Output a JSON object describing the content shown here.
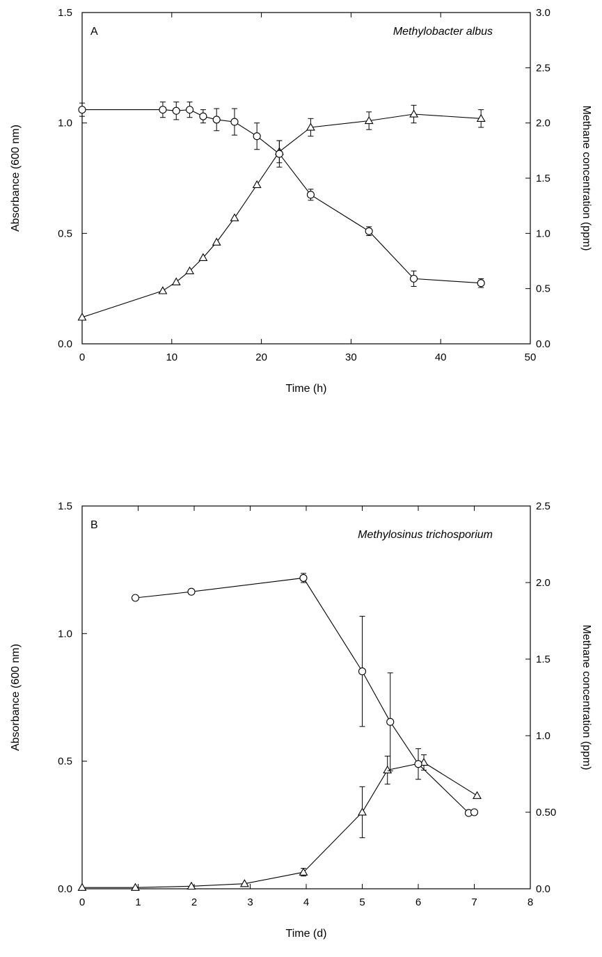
{
  "chart_data": [
    {
      "type": "line",
      "panel_label": "A",
      "annotation": "Methylobacter albus",
      "xlabel": "Time (h)",
      "ylabel_left": "Absorbance (600 nm)",
      "ylabel_right": "Methane concentration (ppm)",
      "xlim": [
        0,
        50
      ],
      "ylim_left": [
        0,
        1.5
      ],
      "ylim_right": [
        0,
        3.0
      ],
      "x_ticks": [
        "0",
        "10",
        "20",
        "30",
        "40",
        "50"
      ],
      "y_left_ticks": [
        "0.0",
        "0.5",
        "1.0",
        "1.5"
      ],
      "y_right_ticks": [
        "0.0",
        "0.5",
        "1.0",
        "1.5",
        "2.0",
        "2.5",
        "3.0"
      ],
      "grid": false,
      "series": [
        {
          "marker": "triangle",
          "axis": "left",
          "points": [
            {
              "x": 0,
              "y": 0.12
            },
            {
              "x": 9,
              "y": 0.24
            },
            {
              "x": 10.5,
              "y": 0.28
            },
            {
              "x": 12,
              "y": 0.33
            },
            {
              "x": 13.5,
              "y": 0.39
            },
            {
              "x": 15,
              "y": 0.46
            },
            {
              "x": 17,
              "y": 0.57
            },
            {
              "x": 19.5,
              "y": 0.72
            },
            {
              "x": 22,
              "y": 0.87,
              "err": 0.05
            },
            {
              "x": 25.5,
              "y": 0.98,
              "err": 0.04
            },
            {
              "x": 32,
              "y": 1.01,
              "err": 0.04
            },
            {
              "x": 37,
              "y": 1.04,
              "err": 0.04
            },
            {
              "x": 44.5,
              "y": 1.02,
              "err": 0.04
            }
          ]
        },
        {
          "marker": "circle",
          "axis": "right",
          "points": [
            {
              "x": 0,
              "y": 2.12,
              "err": 0.06
            },
            {
              "x": 9,
              "y": 2.12,
              "err": 0.07
            },
            {
              "x": 10.5,
              "y": 2.11,
              "err": 0.08
            },
            {
              "x": 12,
              "y": 2.12,
              "err": 0.07
            },
            {
              "x": 13.5,
              "y": 2.06,
              "err": 0.06
            },
            {
              "x": 15,
              "y": 2.03,
              "err": 0.1
            },
            {
              "x": 17,
              "y": 2.01,
              "err": 0.12
            },
            {
              "x": 19.5,
              "y": 1.88,
              "err": 0.12
            },
            {
              "x": 22,
              "y": 1.72,
              "err": 0.12
            },
            {
              "x": 25.5,
              "y": 1.35,
              "err": 0.05
            },
            {
              "x": 32,
              "y": 1.02,
              "err": 0.04
            },
            {
              "x": 37,
              "y": 0.59,
              "err": 0.07
            },
            {
              "x": 44.5,
              "y": 0.55,
              "err": 0.04
            }
          ]
        }
      ]
    },
    {
      "type": "line",
      "panel_label": "B",
      "annotation": "Methylosinus trichosporium",
      "xlabel": "Time (d)",
      "ylabel_left": "Absorbance (600 nm)",
      "ylabel_right": "Methane concentration (ppm)",
      "xlim": [
        0,
        8
      ],
      "ylim_left": [
        0,
        1.5
      ],
      "ylim_right": [
        0,
        2.5
      ],
      "x_ticks": [
        "0",
        "1",
        "2",
        "3",
        "4",
        "5",
        "6",
        "7",
        "8"
      ],
      "y_left_ticks": [
        "0.0",
        "0.5",
        "1.0",
        "1.5"
      ],
      "y_right_ticks": [
        "0.0",
        "0.50",
        "1.0",
        "1.5",
        "2.0",
        "2.5"
      ],
      "grid": false,
      "series": [
        {
          "marker": "triangle",
          "axis": "left",
          "points": [
            {
              "x": 0,
              "y": 0.005
            },
            {
              "x": 0.95,
              "y": 0.005
            },
            {
              "x": 1.95,
              "y": 0.01
            },
            {
              "x": 2.9,
              "y": 0.02
            },
            {
              "x": 3.95,
              "y": 0.065,
              "err": 0.015
            },
            {
              "x": 5,
              "y": 0.3,
              "err": 0.1
            },
            {
              "x": 5.45,
              "y": 0.465,
              "err": 0.055
            },
            {
              "x": 6.1,
              "y": 0.495,
              "err": 0.03
            },
            {
              "x": 7.05,
              "y": 0.365
            }
          ]
        },
        {
          "marker": "circle",
          "axis": "right",
          "points": [
            {
              "x": 0.95,
              "y": 1.9
            },
            {
              "x": 1.95,
              "y": 1.94
            },
            {
              "x": 3.95,
              "y": 2.03,
              "err": 0.03
            },
            {
              "x": 5,
              "y": 1.42,
              "err": 0.36
            },
            {
              "x": 5.5,
              "y": 1.09,
              "err": 0.32
            },
            {
              "x": 6,
              "y": 0.815,
              "err": 0.1
            },
            {
              "x": 6.9,
              "y": 0.495
            },
            {
              "x": 7.0,
              "y": 0.5
            }
          ]
        }
      ]
    }
  ]
}
